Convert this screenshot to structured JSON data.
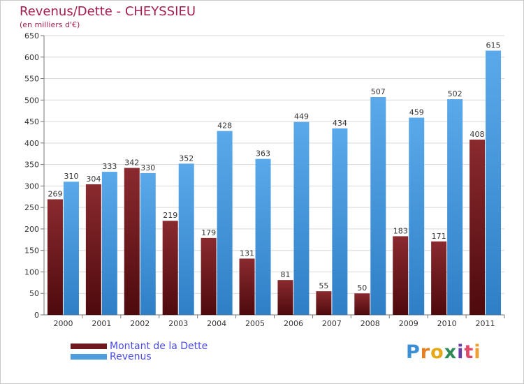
{
  "chart_data": {
    "type": "bar",
    "title": "Revenus/Dette - CHEYSSIEU",
    "subtitle": "(en milliers d'€)",
    "categories": [
      "2000",
      "2001",
      "2002",
      "2003",
      "2004",
      "2005",
      "2006",
      "2007",
      "2008",
      "2009",
      "2010",
      "2011"
    ],
    "series": [
      {
        "name": "Montant de la Dette",
        "color": "#6e1a1e",
        "values": [
          269,
          304,
          342,
          219,
          179,
          131,
          81,
          55,
          50,
          183,
          171,
          408
        ]
      },
      {
        "name": "Revenus",
        "color": "#4d9de0",
        "values": [
          310,
          333,
          330,
          352,
          428,
          363,
          449,
          434,
          507,
          459,
          502,
          615
        ]
      }
    ],
    "y_ticks": [
      "0",
      "50",
      "100",
      "150",
      "200",
      "250",
      "300",
      "350",
      "400",
      "450",
      "500",
      "550",
      "600",
      "650"
    ],
    "ylim": [
      0,
      650
    ],
    "grid": true,
    "legend_position": "bottom-left"
  },
  "legend": {
    "items": [
      {
        "label": "Montant de la Dette",
        "color": "#6e1a1e"
      },
      {
        "label": "Revenus",
        "color": "#4d9de0"
      }
    ]
  },
  "logo": {
    "letters": [
      "P",
      "r",
      "o",
      "x",
      "i",
      "t",
      "i"
    ],
    "colors": [
      "#3b8fd6",
      "#e67e22",
      "#e6a817",
      "#2e8b57",
      "#6a3da8",
      "#e04a6a",
      "#f0a030"
    ]
  }
}
